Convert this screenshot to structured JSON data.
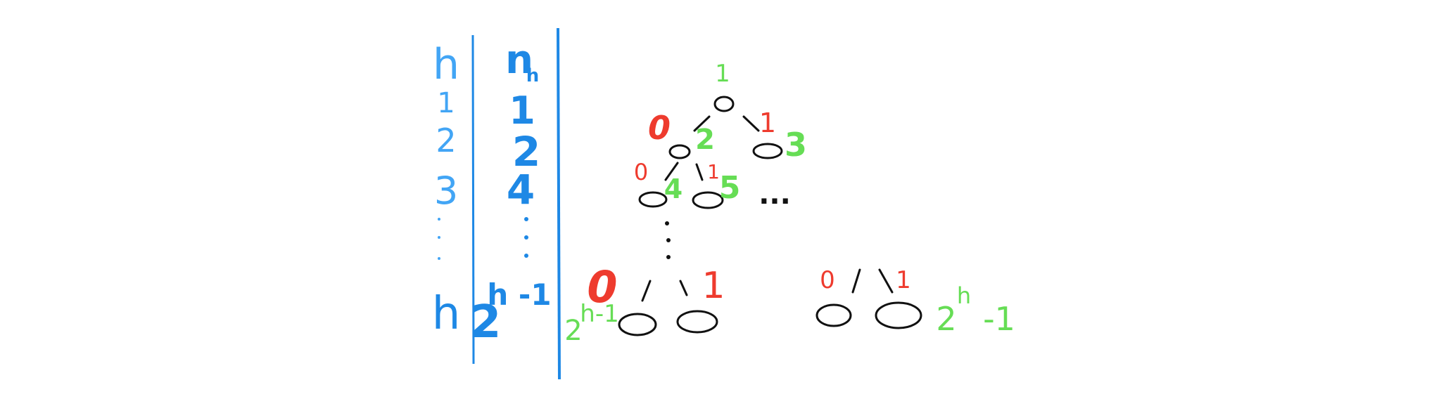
{
  "colors": {
    "blue": "#1e88e5",
    "light_blue": "#42a5f5",
    "green": "#66dd55",
    "red": "#ee3b2e",
    "black": "#111111"
  },
  "table": {
    "col_h_header": "h",
    "col_n_header": "n",
    "col_n_subscript": "h",
    "rows": [
      {
        "h": "1",
        "n": "1"
      },
      {
        "h": "2",
        "n": "2"
      },
      {
        "h": "3",
        "n": "4"
      },
      {
        "h": "h",
        "n_base": "2",
        "n_exp": "h -1"
      }
    ]
  },
  "tree": {
    "root_index": "1",
    "level2_left_edge": "0",
    "level2_right_edge": "1",
    "level2_left_index": "2",
    "level2_right_index": "3",
    "level3_left_edge": "0",
    "level3_right_edge": "1",
    "level3_left_index": "4",
    "level3_right_index": "5",
    "ellipsis": "...",
    "bottom_left_edge": "0",
    "bottom_right_edge": "1",
    "bottom_left_base": "2",
    "bottom_left_exp": "h-1",
    "bottom_far_left_edge": "0",
    "bottom_far_right_edge": "1",
    "bottom_right_base": "2",
    "bottom_right_exp": "h",
    "bottom_right_suffix": "-1"
  }
}
